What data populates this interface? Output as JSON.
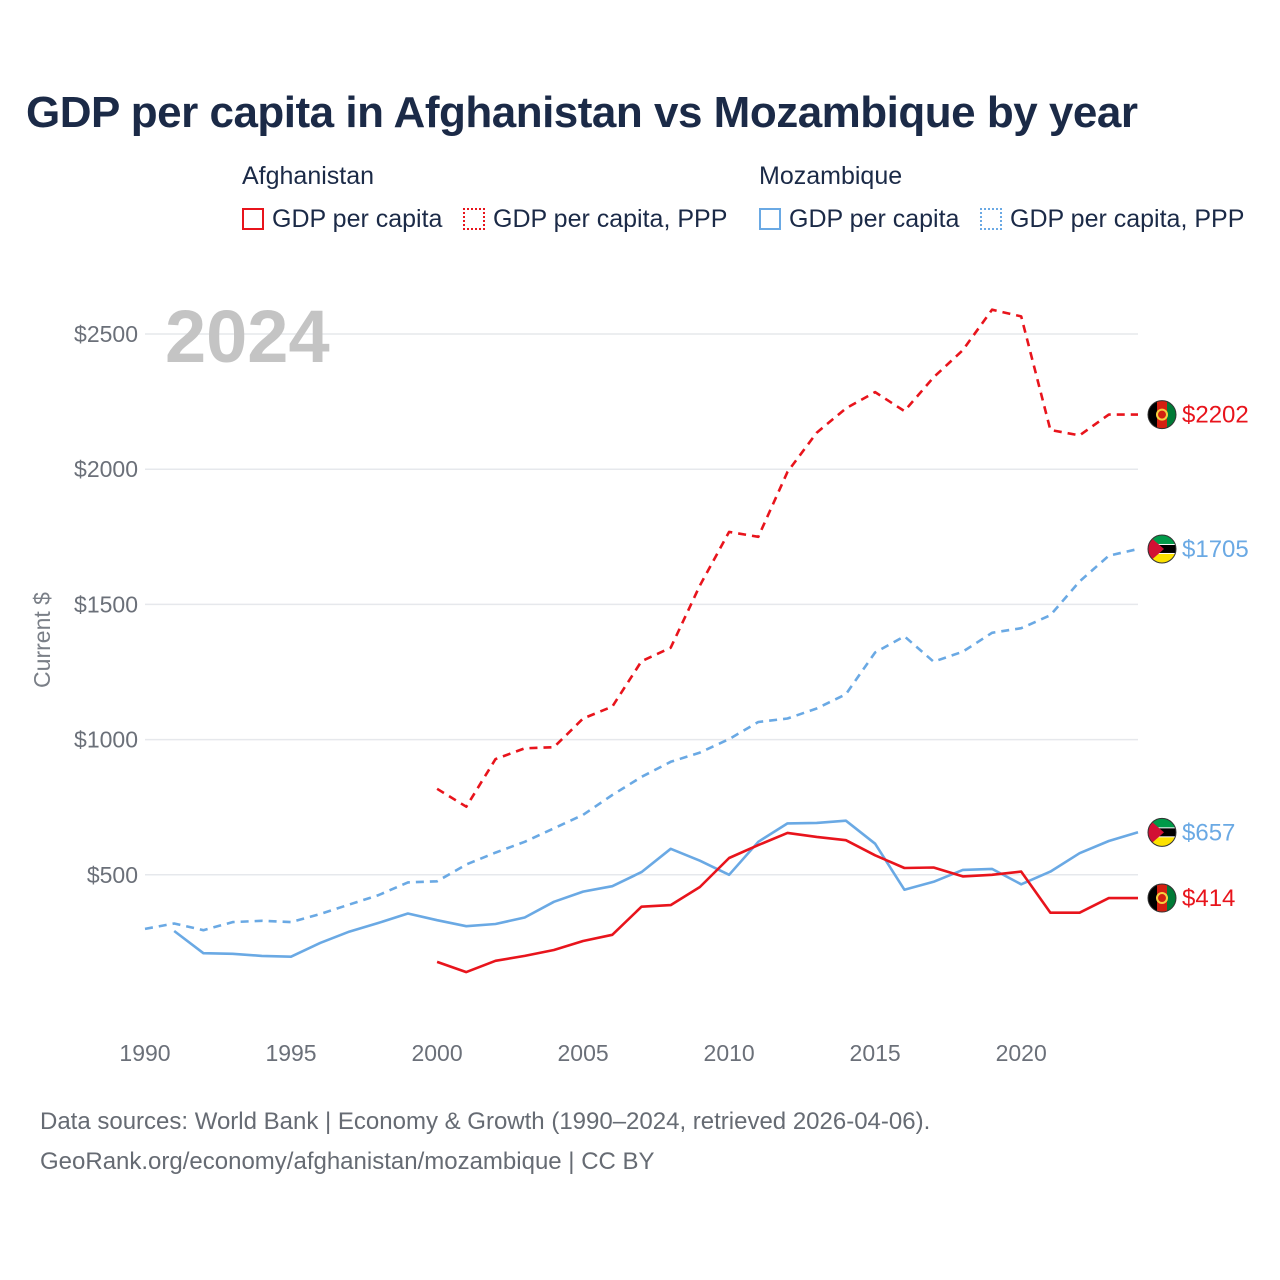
{
  "title": "GDP per capita in Afghanistan vs Mozambique by year",
  "legend": {
    "groups": [
      {
        "country": "Afghanistan",
        "color": "#e8141c",
        "items": [
          "GDP per capita",
          "GDP per capita, PPP"
        ]
      },
      {
        "country": "Mozambique",
        "color": "#6aa9e4",
        "items": [
          "GDP per capita",
          "GDP per capita, PPP"
        ]
      }
    ]
  },
  "year_label": "2024",
  "footer": {
    "line1": "Data sources: World Bank | Economy & Growth (1990–2024, retrieved 2026-04-06).",
    "line2": "GeoRank.org/economy/afghanistan/mozambique | CC BY"
  },
  "chart_data": {
    "type": "line",
    "title": "GDP per capita in Afghanistan vs Mozambique by year",
    "xlabel": "",
    "ylabel": "Current $",
    "xlim": [
      1990,
      2024
    ],
    "ylim": [
      0,
      2700
    ],
    "x_ticks": [
      1990,
      1995,
      2000,
      2005,
      2010,
      2015,
      2020
    ],
    "y_ticks": [
      500,
      1000,
      1500,
      2000,
      2500
    ],
    "y_tick_labels": [
      "$500",
      "$1000",
      "$1500",
      "$2000",
      "$2500"
    ],
    "grid": true,
    "series": [
      {
        "name": "Afghanistan GDP per capita, PPP",
        "country": "Afghanistan",
        "style": "dashed",
        "color": "#e8141c",
        "end_label": "$2202",
        "points": [
          [
            2000,
            818
          ],
          [
            2001,
            752
          ],
          [
            2002,
            928
          ],
          [
            2003,
            968
          ],
          [
            2004,
            972
          ],
          [
            2005,
            1078
          ],
          [
            2006,
            1122
          ],
          [
            2007,
            1290
          ],
          [
            2008,
            1340
          ],
          [
            2009,
            1570
          ],
          [
            2010,
            1768
          ],
          [
            2011,
            1750
          ],
          [
            2012,
            1990
          ],
          [
            2013,
            2135
          ],
          [
            2014,
            2225
          ],
          [
            2015,
            2285
          ],
          [
            2016,
            2215
          ],
          [
            2017,
            2340
          ],
          [
            2018,
            2440
          ],
          [
            2019,
            2590
          ],
          [
            2020,
            2565
          ],
          [
            2021,
            2145
          ],
          [
            2022,
            2125
          ],
          [
            2023,
            2202
          ],
          [
            2024,
            2202
          ]
        ]
      },
      {
        "name": "Mozambique GDP per capita, PPP",
        "country": "Mozambique",
        "style": "dashed",
        "color": "#6aa9e4",
        "end_label": "$1705",
        "points": [
          [
            1990,
            300
          ],
          [
            1991,
            320
          ],
          [
            1992,
            295
          ],
          [
            1993,
            325
          ],
          [
            1994,
            330
          ],
          [
            1995,
            325
          ],
          [
            1996,
            355
          ],
          [
            1997,
            390
          ],
          [
            1998,
            425
          ],
          [
            1999,
            472
          ],
          [
            2000,
            476
          ],
          [
            2001,
            538
          ],
          [
            2002,
            582
          ],
          [
            2003,
            622
          ],
          [
            2004,
            672
          ],
          [
            2005,
            722
          ],
          [
            2006,
            795
          ],
          [
            2007,
            862
          ],
          [
            2008,
            918
          ],
          [
            2009,
            952
          ],
          [
            2010,
            1002
          ],
          [
            2011,
            1065
          ],
          [
            2012,
            1078
          ],
          [
            2013,
            1115
          ],
          [
            2014,
            1168
          ],
          [
            2015,
            1322
          ],
          [
            2016,
            1382
          ],
          [
            2017,
            1288
          ],
          [
            2018,
            1325
          ],
          [
            2019,
            1395
          ],
          [
            2020,
            1412
          ],
          [
            2021,
            1460
          ],
          [
            2022,
            1585
          ],
          [
            2023,
            1680
          ],
          [
            2024,
            1705
          ]
        ]
      },
      {
        "name": "Mozambique GDP per capita",
        "country": "Mozambique",
        "style": "solid",
        "color": "#6aa9e4",
        "end_label": "$657",
        "points": [
          [
            1991,
            292
          ],
          [
            1992,
            210
          ],
          [
            1993,
            208
          ],
          [
            1994,
            200
          ],
          [
            1995,
            197
          ],
          [
            1996,
            248
          ],
          [
            1997,
            290
          ],
          [
            1998,
            322
          ],
          [
            1999,
            357
          ],
          [
            2000,
            332
          ],
          [
            2001,
            310
          ],
          [
            2002,
            318
          ],
          [
            2003,
            342
          ],
          [
            2004,
            400
          ],
          [
            2005,
            438
          ],
          [
            2006,
            458
          ],
          [
            2007,
            510
          ],
          [
            2008,
            596
          ],
          [
            2009,
            552
          ],
          [
            2010,
            500
          ],
          [
            2011,
            622
          ],
          [
            2012,
            690
          ],
          [
            2013,
            692
          ],
          [
            2014,
            700
          ],
          [
            2015,
            615
          ],
          [
            2016,
            445
          ],
          [
            2017,
            474
          ],
          [
            2018,
            518
          ],
          [
            2019,
            522
          ],
          [
            2020,
            465
          ],
          [
            2021,
            512
          ],
          [
            2022,
            580
          ],
          [
            2023,
            625
          ],
          [
            2024,
            657
          ]
        ]
      },
      {
        "name": "Afghanistan GDP per capita",
        "country": "Afghanistan",
        "style": "solid",
        "color": "#e8141c",
        "end_label": "$414",
        "points": [
          [
            2000,
            178
          ],
          [
            2001,
            140
          ],
          [
            2002,
            182
          ],
          [
            2003,
            200
          ],
          [
            2004,
            222
          ],
          [
            2005,
            255
          ],
          [
            2006,
            278
          ],
          [
            2007,
            382
          ],
          [
            2008,
            388
          ],
          [
            2009,
            455
          ],
          [
            2010,
            562
          ],
          [
            2011,
            610
          ],
          [
            2012,
            655
          ],
          [
            2013,
            640
          ],
          [
            2014,
            628
          ],
          [
            2015,
            572
          ],
          [
            2016,
            525
          ],
          [
            2017,
            527
          ],
          [
            2018,
            494
          ],
          [
            2019,
            500
          ],
          [
            2020,
            512
          ],
          [
            2021,
            360
          ],
          [
            2022,
            360
          ],
          [
            2023,
            414
          ],
          [
            2024,
            414
          ]
        ]
      }
    ]
  }
}
